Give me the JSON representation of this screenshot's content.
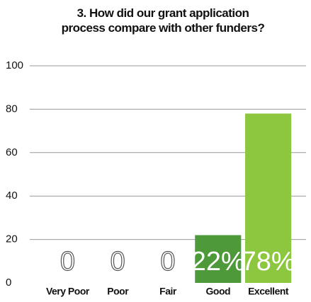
{
  "chart_data": {
    "type": "bar",
    "title": "3. How did our grant application process compare with other funders?",
    "categories": [
      "Very Poor",
      "Poor",
      "Fair",
      "Good",
      "Excellent"
    ],
    "values": [
      0,
      0,
      0,
      22,
      78
    ],
    "value_labels": [
      "0",
      "0",
      "0",
      "22%",
      "78%"
    ],
    "colors": [
      "#8dc63f",
      "#8dc63f",
      "#8dc63f",
      "#4e9a3a",
      "#8dc63f"
    ],
    "ylim": [
      0,
      100
    ],
    "yticks": [
      0,
      20,
      40,
      60,
      80,
      100
    ],
    "grid": true
  }
}
